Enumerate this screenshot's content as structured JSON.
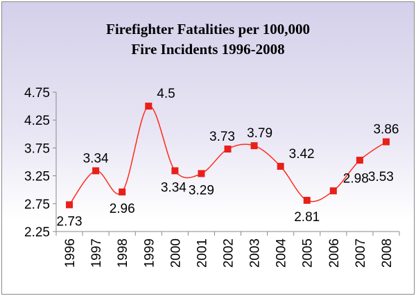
{
  "chart_data": {
    "type": "line",
    "title_lines": [
      "Firefighter Fatalities per 100,000",
      "Fire Incidents 1996-2008"
    ],
    "categories": [
      "1996",
      "1997",
      "1998",
      "1999",
      "2000",
      "2001",
      "2002",
      "2003",
      "2004",
      "2005",
      "2006",
      "2007",
      "2008"
    ],
    "values": [
      2.73,
      3.34,
      2.96,
      4.5,
      3.34,
      3.29,
      3.73,
      3.79,
      3.42,
      2.81,
      2.98,
      3.53,
      3.86
    ],
    "data_labels": [
      "2.73",
      "3.34",
      "2.96",
      "4.5",
      "3.34",
      "3.29",
      "3.73",
      "3.79",
      "3.42",
      "2.81",
      "2.98",
      "3.53",
      "3.86"
    ],
    "ylim": [
      2.25,
      4.75
    ],
    "yticks": [
      "2.25",
      "2.75",
      "3.25",
      "3.75",
      "4.25",
      "4.75"
    ],
    "xlabel": "",
    "ylabel": "",
    "grid": false,
    "legend": "none",
    "smooth": true,
    "line_color": "#ff2a1a",
    "marker_color": "#e8201a",
    "marker": "square"
  }
}
